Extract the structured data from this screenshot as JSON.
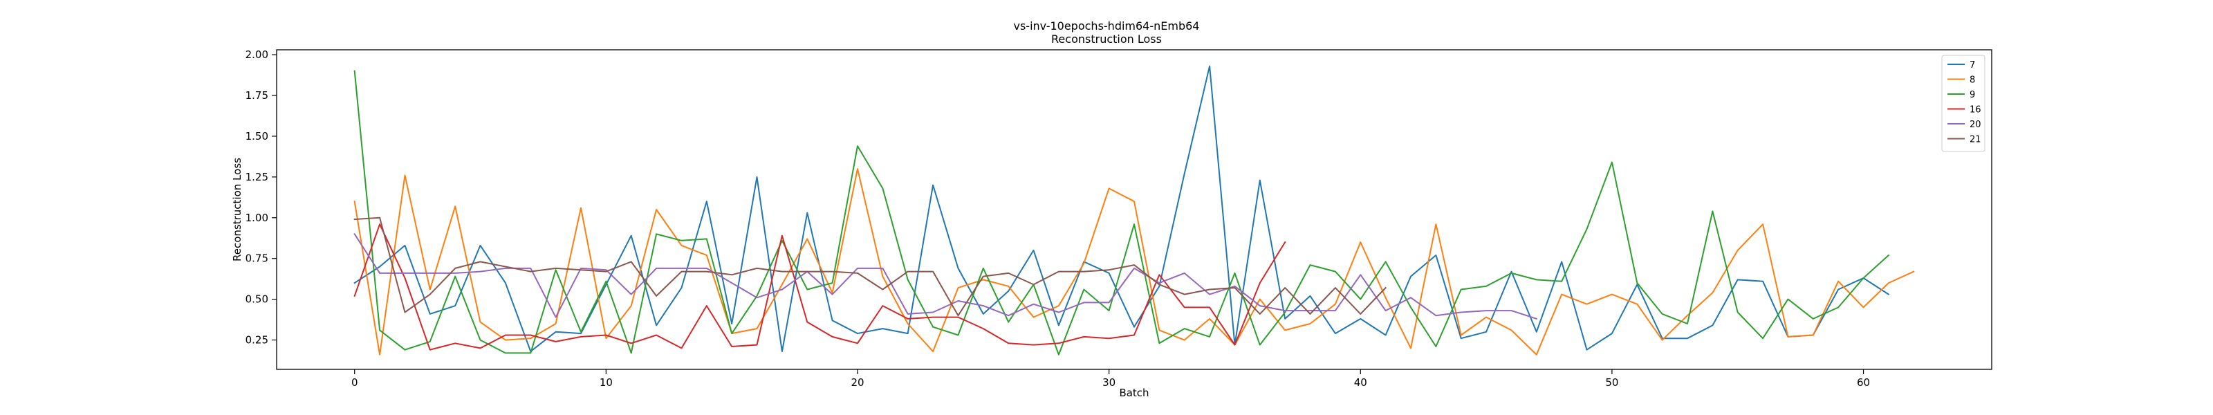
{
  "chart_data": {
    "type": "line",
    "title": "vs-inv-10epochs-hdim64-nEmb64",
    "subtitle": "Reconstruction Loss",
    "xlabel": "Batch",
    "ylabel": "Reconstruction Loss",
    "xlim": [
      -3.1,
      65.1
    ],
    "ylim": [
      0.07,
      2.03
    ],
    "xticks": [
      0,
      10,
      20,
      30,
      40,
      50,
      60
    ],
    "yticks": [
      0.25,
      0.5,
      0.75,
      1.0,
      1.25,
      1.5,
      1.75,
      2.0
    ],
    "ytick_labels": [
      "0.25",
      "0.50",
      "0.75",
      "1.00",
      "1.25",
      "1.50",
      "1.75",
      "2.00"
    ],
    "grid": false,
    "legend_position": "top-right",
    "series": [
      {
        "name": "7",
        "color": "#1f77b4",
        "values": [
          0.6,
          0.7,
          0.83,
          0.41,
          0.46,
          0.83,
          0.6,
          0.18,
          0.3,
          0.29,
          0.59,
          0.89,
          0.34,
          0.57,
          1.1,
          0.35,
          1.25,
          0.18,
          1.03,
          0.37,
          0.29,
          0.32,
          0.29,
          1.2,
          0.69,
          0.41,
          0.55,
          0.8,
          0.34,
          0.73,
          0.66,
          0.33,
          0.58,
          1.27,
          1.93,
          0.22,
          1.23,
          0.38,
          0.52,
          0.29,
          0.38,
          0.28,
          0.64,
          0.77,
          0.26,
          0.3,
          0.67,
          0.3,
          0.73,
          0.19,
          0.29,
          0.59,
          0.26,
          0.26,
          0.34,
          0.62,
          0.61,
          0.27,
          0.28,
          0.56,
          0.63,
          0.53
        ]
      },
      {
        "name": "8",
        "color": "#ff7f0e",
        "values": [
          1.1,
          0.16,
          1.26,
          0.56,
          1.07,
          0.36,
          0.25,
          0.26,
          0.35,
          1.06,
          0.26,
          0.46,
          1.05,
          0.83,
          0.77,
          0.29,
          0.32,
          0.59,
          0.87,
          0.54,
          1.3,
          0.64,
          0.35,
          0.18,
          0.57,
          0.62,
          0.58,
          0.39,
          0.46,
          0.72,
          1.18,
          1.1,
          0.31,
          0.25,
          0.38,
          0.22,
          0.5,
          0.31,
          0.35,
          0.47,
          0.85,
          0.51,
          0.2,
          0.96,
          0.28,
          0.39,
          0.31,
          0.16,
          0.53,
          0.47,
          0.53,
          0.47,
          0.25,
          0.4,
          0.54,
          0.8,
          0.96,
          0.27,
          0.28,
          0.61,
          0.45,
          0.6,
          0.67
        ]
      },
      {
        "name": "9",
        "color": "#2ca02c",
        "values": [
          1.9,
          0.31,
          0.19,
          0.24,
          0.64,
          0.25,
          0.17,
          0.17,
          0.68,
          0.3,
          0.61,
          0.17,
          0.9,
          0.86,
          0.87,
          0.29,
          0.52,
          0.86,
          0.56,
          0.6,
          1.44,
          1.18,
          0.62,
          0.33,
          0.28,
          0.69,
          0.36,
          0.59,
          0.16,
          0.56,
          0.43,
          0.96,
          0.23,
          0.32,
          0.27,
          0.66,
          0.22,
          0.42,
          0.71,
          0.67,
          0.5,
          0.73,
          0.45,
          0.21,
          0.56,
          0.58,
          0.66,
          0.62,
          0.61,
          0.93,
          1.34,
          0.6,
          0.41,
          0.35,
          1.04,
          0.42,
          0.26,
          0.5,
          0.38,
          0.45,
          0.63,
          0.77
        ]
      },
      {
        "name": "16",
        "color": "#d62728",
        "values": [
          0.52,
          0.96,
          0.63,
          0.19,
          0.23,
          0.2,
          0.28,
          0.28,
          0.24,
          0.27,
          0.28,
          0.23,
          0.28,
          0.2,
          0.46,
          0.21,
          0.22,
          0.89,
          0.36,
          0.27,
          0.23,
          0.46,
          0.38,
          0.39,
          0.39,
          0.32,
          0.23,
          0.22,
          0.23,
          0.27,
          0.26,
          0.28,
          0.65,
          0.45,
          0.45,
          0.22,
          0.6,
          0.85
        ]
      },
      {
        "name": "20",
        "color": "#9467bd",
        "values": [
          0.9,
          0.66,
          0.66,
          0.66,
          0.66,
          0.67,
          0.69,
          0.69,
          0.39,
          0.69,
          0.68,
          0.53,
          0.69,
          0.69,
          0.69,
          0.6,
          0.51,
          0.56,
          0.67,
          0.53,
          0.69,
          0.69,
          0.41,
          0.42,
          0.49,
          0.46,
          0.4,
          0.47,
          0.42,
          0.48,
          0.48,
          0.69,
          0.6,
          0.66,
          0.53,
          0.58,
          0.46,
          0.43,
          0.43,
          0.43,
          0.65,
          0.43,
          0.51,
          0.4,
          0.42,
          0.43,
          0.43,
          0.38
        ]
      },
      {
        "name": "21",
        "color": "#8c564b",
        "values": [
          0.99,
          1.0,
          0.42,
          0.53,
          0.69,
          0.73,
          0.7,
          0.67,
          0.69,
          0.68,
          0.67,
          0.73,
          0.52,
          0.67,
          0.67,
          0.65,
          0.69,
          0.67,
          0.67,
          0.67,
          0.66,
          0.56,
          0.67,
          0.67,
          0.4,
          0.64,
          0.66,
          0.59,
          0.67,
          0.67,
          0.68,
          0.71,
          0.59,
          0.53,
          0.56,
          0.57,
          0.41,
          0.57,
          0.41,
          0.57,
          0.41,
          0.57
        ]
      }
    ]
  }
}
